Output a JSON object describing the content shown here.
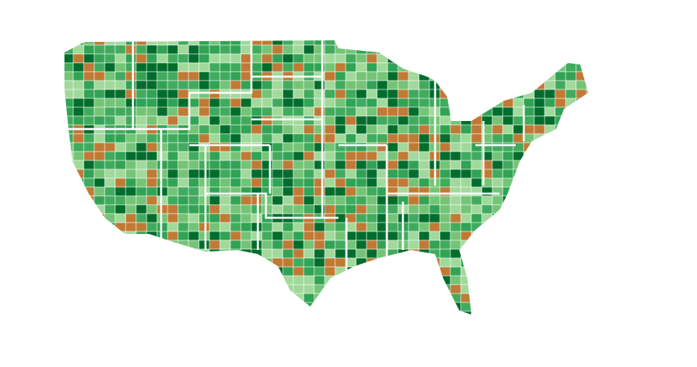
{
  "map": {
    "colors": [
      "#006d2c",
      "#31a354",
      "#41ab5d",
      "#74c476",
      "#a1d99b",
      "#c07a35"
    ]
  }
}
